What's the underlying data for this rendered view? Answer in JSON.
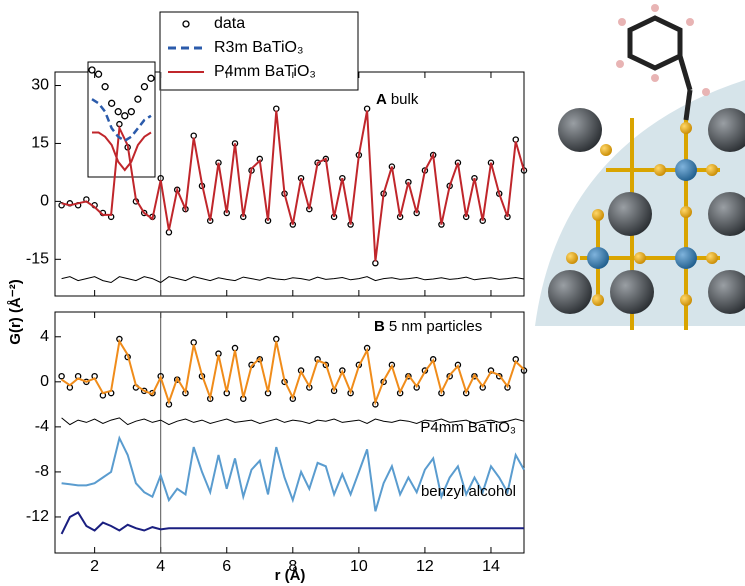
{
  "chart_data": [
    {
      "type": "line",
      "ylabel": "G(r) (Å⁻²)",
      "panel_label": "A",
      "panel_text": "bulk",
      "ylim": [
        -24.5,
        33.5
      ],
      "yticks": [
        -15,
        0,
        15,
        30
      ],
      "xlim": [
        0.8,
        15.0
      ],
      "vline": 4,
      "legend": [
        {
          "name": "data",
          "color": "#000000",
          "style": "markers"
        },
        {
          "name": "R3m BaTiO₃",
          "color": "#2b5bab",
          "style": "dashed"
        },
        {
          "name": "P4mm BaTiO₃",
          "color": "#c0262b",
          "style": "line"
        }
      ],
      "inset": [
        {
          "color": "#000000",
          "style": "markers",
          "values": [
            32,
            31,
            28,
            24,
            22,
            21,
            22,
            25,
            28,
            30
          ]
        },
        {
          "color": "#2b5bab",
          "style": "dashed",
          "values": [
            25,
            24,
            22,
            18,
            16,
            15,
            16,
            18,
            20,
            21
          ]
        },
        {
          "color": "#c0262b",
          "style": "line",
          "values": [
            17,
            17,
            16,
            14,
            10,
            8,
            10,
            14,
            16,
            17
          ]
        }
      ],
      "x": [
        1,
        1.25,
        1.5,
        1.75,
        2,
        2.25,
        2.5,
        2.75,
        3,
        3.25,
        3.5,
        3.75,
        4,
        4.25,
        4.5,
        4.75,
        5,
        5.25,
        5.5,
        5.75,
        6,
        6.25,
        6.5,
        6.75,
        7,
        7.25,
        7.5,
        7.75,
        8,
        8.25,
        8.5,
        8.75,
        9,
        9.25,
        9.5,
        9.75,
        10,
        10.25,
        10.5,
        10.75,
        11,
        11.25,
        11.5,
        11.75,
        12,
        12.25,
        12.5,
        12.75,
        13,
        13.25,
        13.5,
        13.75,
        14,
        14.25,
        14.5,
        14.75,
        15
      ],
      "series": [
        {
          "color": "#000000",
          "style": "markers",
          "values": [
            -1,
            -0.5,
            -1,
            0.5,
            -1,
            -3,
            -4,
            20,
            14,
            0,
            -3,
            -4,
            6,
            -8,
            3,
            -2,
            17,
            4,
            -5,
            10,
            -3,
            15,
            -4,
            8,
            11,
            -5,
            24,
            2,
            -6,
            6,
            -2,
            10,
            11,
            -4,
            6,
            -6,
            12,
            24,
            -16,
            2,
            9,
            -4,
            5,
            -3,
            8,
            12,
            -6,
            4,
            10,
            -4,
            6,
            -5,
            10,
            2,
            -4,
            16,
            8
          ]
        },
        {
          "color": "#c0262b",
          "style": "line",
          "values": [
            -0.5,
            -1,
            -0.5,
            0,
            -1.5,
            -3.5,
            -3.5,
            19,
            14.5,
            0.5,
            -3,
            -4.5,
            5.5,
            -7.5,
            3,
            -2,
            16.5,
            4.5,
            -5,
            10,
            -3,
            15,
            -4,
            8.5,
            10.5,
            -5,
            23.5,
            2,
            -6,
            6,
            -2,
            10,
            11,
            -4,
            6,
            -6,
            12,
            23.5,
            -15.5,
            2,
            9,
            -4,
            5,
            -3,
            8,
            12,
            -6,
            4,
            10,
            -4,
            6,
            -5,
            10,
            2,
            -4,
            15.5,
            8
          ]
        },
        {
          "color": "#000000",
          "style": "thin",
          "values": [
            -20,
            -19.5,
            -20.5,
            -20,
            -19.5,
            -20.5,
            -21,
            -19.5,
            -20,
            -20.5,
            -19.5,
            -20,
            -21,
            -19.5,
            -20,
            -20.5,
            -19.5,
            -20,
            -20.5,
            -19.8,
            -20.2,
            -20.5,
            -19.6,
            -20,
            -20.4,
            -19.7,
            -20.1,
            -20.3,
            -19.8,
            -20,
            -20.4,
            -19.6,
            -20.2,
            -20,
            -19.7,
            -20.3,
            -20,
            -19.5,
            -20.5,
            -20,
            -19.8,
            -20.2,
            -20,
            -19.7,
            -20.3,
            -20.1,
            -19.8,
            -20.2,
            -20,
            -19.6,
            -20.3,
            -20,
            -19.8,
            -20.2,
            -20,
            -19.7,
            -20.1
          ]
        }
      ]
    },
    {
      "type": "line",
      "xlabel": "r (Å)",
      "panel_label": "B",
      "panel_text": "5 nm particles",
      "ylim": [
        -15.2,
        6.2
      ],
      "yticks": [
        -12,
        -8,
        -4,
        0,
        4
      ],
      "xlim": [
        0.8,
        15.0
      ],
      "xticks": [
        2,
        4,
        6,
        8,
        10,
        12,
        14
      ],
      "vline": 4,
      "x": [
        1,
        1.25,
        1.5,
        1.75,
        2,
        2.25,
        2.5,
        2.75,
        3,
        3.25,
        3.5,
        3.75,
        4,
        4.25,
        4.5,
        4.75,
        5,
        5.25,
        5.5,
        5.75,
        6,
        6.25,
        6.5,
        6.75,
        7,
        7.25,
        7.5,
        7.75,
        8,
        8.25,
        8.5,
        8.75,
        9,
        9.25,
        9.5,
        9.75,
        10,
        10.25,
        10.5,
        10.75,
        11,
        11.25,
        11.5,
        11.75,
        12,
        12.25,
        12.5,
        12.75,
        13,
        13.25,
        13.5,
        13.75,
        14,
        14.25,
        14.5,
        14.75,
        15
      ],
      "series": [
        {
          "color": "#000000",
          "style": "markers",
          "values": [
            0.5,
            -0.5,
            0.5,
            0,
            0.5,
            -1.2,
            -1,
            3.8,
            2.2,
            -0.5,
            -0.8,
            -1,
            0.5,
            -2,
            0.2,
            -1,
            3.5,
            0.5,
            -1.5,
            2.5,
            -1,
            3,
            -1.5,
            1.5,
            2,
            -1,
            3.8,
            0,
            -1.5,
            1,
            -0.5,
            2,
            1.5,
            -0.8,
            1,
            -1,
            1.5,
            3,
            -2,
            0,
            1.5,
            -1,
            0.5,
            -0.5,
            1,
            2,
            -1,
            0.5,
            1.5,
            -1,
            0.5,
            -0.5,
            1,
            0.5,
            -0.5,
            2,
            1
          ]
        },
        {
          "color": "#f08c1a",
          "style": "line",
          "values": [
            0.2,
            -0.3,
            0.3,
            0,
            0.3,
            -1,
            -0.8,
            3.6,
            2.4,
            -0.3,
            -0.8,
            -1.1,
            0.4,
            -1.8,
            0.3,
            -0.9,
            3.3,
            0.6,
            -1.4,
            2.4,
            -0.9,
            2.8,
            -1.4,
            1.4,
            2.1,
            -0.9,
            3.6,
            0.1,
            -1.4,
            0.9,
            -0.4,
            1.9,
            1.6,
            -0.7,
            0.9,
            -0.9,
            1.4,
            2.8,
            -1.8,
            0.1,
            1.4,
            -0.9,
            0.6,
            -0.4,
            0.9,
            1.9,
            -0.9,
            0.6,
            1.4,
            -0.9,
            0.6,
            -0.4,
            0.9,
            0.6,
            -0.4,
            1.8,
            1.1
          ]
        },
        {
          "color": "#000000",
          "style": "thin",
          "values": [
            -3.2,
            -3.8,
            -3.4,
            -3.6,
            -3.3,
            -3.7,
            -3.4,
            -3.2,
            -3.8,
            -3.5,
            -3.3,
            -3.6,
            -3.4,
            -3.8,
            -3.5,
            -3.3,
            -3.6,
            -3.4,
            -3.7,
            -3.5,
            -3.3,
            -3.6,
            -3.5,
            -3.4,
            -3.7,
            -3.5,
            -3.3,
            -3.6,
            -3.4,
            -3.5,
            -3.7,
            -3.4,
            -3.5,
            -3.3,
            -3.6,
            -3.5,
            -3.4,
            -3.7,
            -3.3,
            -3.5,
            -3.6,
            -3.4,
            -3.5,
            -3.7,
            -3.4,
            -3.5,
            -3.3,
            -3.6,
            -3.5,
            -3.4,
            -3.7,
            -3.5,
            -3.4,
            -3.6,
            -3.5,
            -3.3,
            -3.5
          ]
        },
        {
          "color": "#5a9ccf",
          "style": "line",
          "label": "P4mm BaTiO₃",
          "values": [
            -9,
            -9.1,
            -9.2,
            -9.2,
            -9,
            -8.5,
            -8,
            -5,
            -6.5,
            -9,
            -9.8,
            -10.2,
            -8.3,
            -10.5,
            -9.5,
            -10,
            -5.8,
            -8,
            -9.8,
            -6.5,
            -9.5,
            -6.8,
            -10.2,
            -7.8,
            -7,
            -10,
            -5.8,
            -8.5,
            -10.5,
            -8,
            -9.5,
            -7.2,
            -7.5,
            -10,
            -8.2,
            -10,
            -8,
            -6,
            -11.5,
            -9,
            -7.5,
            -10,
            -8.5,
            -9.8,
            -7.8,
            -6.8,
            -10.2,
            -8.5,
            -7.5,
            -10,
            -8.5,
            -9.8,
            -7.5,
            -8.5,
            -9.8,
            -6.5,
            -7.8
          ]
        },
        {
          "color": "#1a1f80",
          "style": "line",
          "label": "benzyl alcohol",
          "values": [
            -13.5,
            -12,
            -11.6,
            -12.8,
            -13.2,
            -12.5,
            -12.8,
            -13.2,
            -12.7,
            -13,
            -13.2,
            -12.9,
            -13.1,
            -13,
            -13,
            -13,
            -13,
            -13,
            -13,
            -13,
            -13,
            -13,
            -13,
            -13,
            -13,
            -13,
            -13,
            -13,
            -13,
            -13,
            -13,
            -13,
            -13,
            -13,
            -13,
            -13,
            -13,
            -13,
            -13,
            -13,
            -13,
            -13,
            -13,
            -13,
            -13,
            -13,
            -13,
            -13,
            -13,
            -13,
            -13,
            -13,
            -13,
            -13,
            -13,
            -13,
            -13
          ]
        }
      ]
    }
  ]
}
